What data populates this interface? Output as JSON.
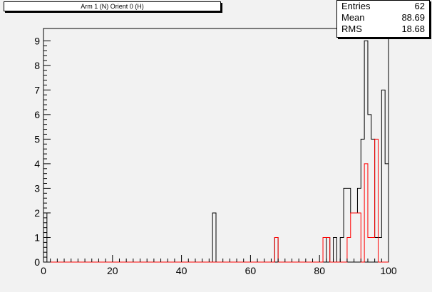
{
  "title": "Arm 1 (N) Orient 0 (H)",
  "stats": [
    {
      "label": "Entries",
      "value": "62"
    },
    {
      "label": "Mean",
      "value": "88.69"
    },
    {
      "label": "RMS",
      "value": "18.68"
    }
  ],
  "colors": {
    "background": "#f2f2f2",
    "frame": "#000000",
    "series_black": "#000000",
    "series_red": "#ff0000"
  },
  "chart_data": {
    "type": "histogram",
    "xlim": [
      0,
      100
    ],
    "ylim": [
      0,
      9.5
    ],
    "bin_width": 1,
    "x_ticks": [
      0,
      20,
      40,
      60,
      80,
      100
    ],
    "y_ticks": [
      0,
      1,
      2,
      3,
      4,
      5,
      6,
      7,
      8,
      9
    ],
    "grid": false,
    "series": [
      {
        "color": "#000000",
        "bins": [
          {
            "x": 0,
            "y": 2
          },
          {
            "x": 49,
            "y": 2
          },
          {
            "x": 67,
            "y": 1
          },
          {
            "x": 82,
            "y": 1
          },
          {
            "x": 84,
            "y": 1
          },
          {
            "x": 86,
            "y": 1
          },
          {
            "x": 87,
            "y": 3
          },
          {
            "x": 88,
            "y": 3
          },
          {
            "x": 89,
            "y": 2
          },
          {
            "x": 90,
            "y": 2
          },
          {
            "x": 91,
            "y": 3
          },
          {
            "x": 92,
            "y": 5
          },
          {
            "x": 93,
            "y": 9
          },
          {
            "x": 94,
            "y": 6
          },
          {
            "x": 95,
            "y": 5
          },
          {
            "x": 96,
            "y": 1
          },
          {
            "x": 97,
            "y": 1
          },
          {
            "x": 98,
            "y": 7
          },
          {
            "x": 99,
            "y": 4
          }
        ]
      },
      {
        "color": "#ff0000",
        "bins": [
          {
            "x": 67,
            "y": 1
          },
          {
            "x": 81,
            "y": 1
          },
          {
            "x": 82,
            "y": 1
          },
          {
            "x": 88,
            "y": 1
          },
          {
            "x": 89,
            "y": 2
          },
          {
            "x": 90,
            "y": 2
          },
          {
            "x": 91,
            "y": 2
          },
          {
            "x": 93,
            "y": 4
          },
          {
            "x": 94,
            "y": 1
          },
          {
            "x": 95,
            "y": 1
          },
          {
            "x": 96,
            "y": 5
          }
        ]
      }
    ]
  }
}
